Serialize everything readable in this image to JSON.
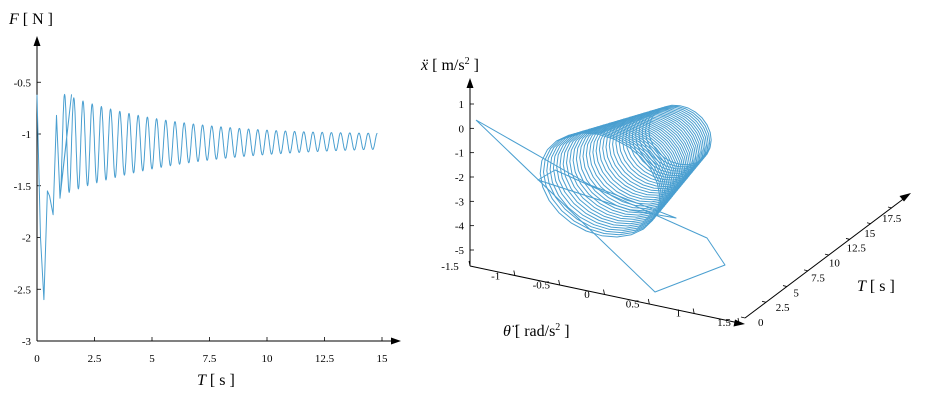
{
  "chart_data": [
    {
      "type": "line",
      "ylabel": {
        "symbol": "F",
        "unit": "[ N ]"
      },
      "xlabel": {
        "symbol": "T",
        "unit": "[ s ]"
      },
      "xlim": [
        0,
        15
      ],
      "ylim": [
        -3,
        0
      ],
      "xticks": [
        "0",
        "2.5",
        "5",
        "7.5",
        "10",
        "12.5",
        "15"
      ],
      "yticks": [
        "-0.5",
        "-1",
        "-1.5",
        "-2",
        "-2.5",
        "-3"
      ],
      "series": [
        {
          "color": "#4a9fd0",
          "description_points": [
            [
              0.0,
              -0.62
            ],
            [
              0.15,
              -2.0
            ],
            [
              0.3,
              -2.6
            ],
            [
              0.45,
              -1.55
            ],
            [
              0.55,
              -1.6
            ],
            [
              0.7,
              -1.78
            ],
            [
              0.85,
              -0.82
            ],
            [
              1.0,
              -1.62
            ],
            [
              1.5,
              -0.62
            ],
            [
              15.0,
              -1.05
            ]
          ],
          "oscillation": {
            "start_time": 1.0,
            "period": 0.4,
            "center_start": -1.1,
            "center_end": -1.07,
            "amp_start": 0.5,
            "amp_end": 0.04
          }
        }
      ]
    },
    {
      "type": "line",
      "dimensions": "3d",
      "zlabel": {
        "symbol": "ẍ",
        "unit": "[ m/s",
        "sup": "2",
        "close": " ]"
      },
      "xlabel": {
        "symbol": "θ̈",
        "unit": "[ rad/s",
        "sup": "2",
        "close": " ]"
      },
      "ylabel": {
        "symbol": "T",
        "unit": "[ s ]"
      },
      "zticks": [
        "1",
        "0",
        "-1",
        "-2",
        "-3",
        "-4",
        "-5"
      ],
      "xticks": [
        "-1.5",
        "-1",
        "-0.5",
        "0",
        "0.5",
        "1",
        "1.5"
      ],
      "yticks": [
        "0",
        "2.5",
        "5",
        "7.5",
        "10",
        "12.5",
        "15",
        "17.5"
      ],
      "zlim": [
        -5,
        1.5
      ],
      "xlim": [
        -1.5,
        1.5
      ],
      "ylim": [
        0,
        17.5
      ],
      "series": [
        {
          "color": "#4a9fd0",
          "description": "accel-vs-angular-accel trajectory over time, loops expanding then contracting"
        }
      ]
    }
  ]
}
